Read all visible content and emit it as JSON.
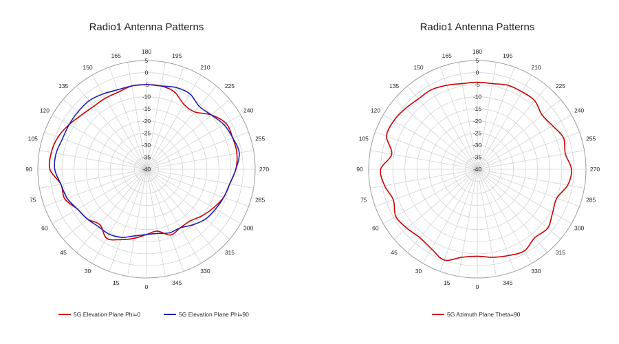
{
  "chart_data": [
    {
      "type": "polar-line",
      "title": "Radio1 Antenna Patterns",
      "r_range": [
        -40,
        5
      ],
      "r_ticks": [
        5,
        0,
        -5,
        -10,
        -15,
        -20,
        -25,
        -30,
        -35,
        -40
      ],
      "angle_ticks": [
        0,
        15,
        30,
        45,
        60,
        75,
        90,
        105,
        120,
        135,
        150,
        165,
        180,
        195,
        210,
        225,
        240,
        255,
        270,
        285,
        300,
        315,
        330,
        345
      ],
      "angle_zero": "bottom",
      "angle_direction": "clockwise",
      "grid": true,
      "legend_position": "bottom",
      "series": [
        {
          "name": "5G Elevation Plane Phi=0",
          "color": "#cc0000",
          "angles": [
            0,
            10,
            20,
            30,
            40,
            50,
            60,
            70,
            80,
            90,
            100,
            110,
            120,
            130,
            140,
            150,
            160,
            170,
            180,
            190,
            200,
            210,
            220,
            230,
            240,
            250,
            260,
            270,
            280,
            290,
            300,
            310,
            320,
            330,
            340,
            350
          ],
          "values": [
            -13,
            -11,
            -9,
            -7,
            -10,
            -8,
            -7,
            -4,
            -4,
            0,
            0,
            -1,
            -3,
            -5,
            -6,
            -6,
            -6,
            -5,
            -5,
            -5,
            -6,
            -9,
            -9,
            -5,
            -2,
            -2,
            -2,
            -3,
            -5,
            -6,
            -8,
            -10,
            -12,
            -12,
            -11,
            -14
          ]
        },
        {
          "name": "5G Elevation Plane Phi=90",
          "color": "#1f1fb3",
          "angles": [
            0,
            10,
            20,
            30,
            40,
            50,
            60,
            70,
            80,
            90,
            100,
            110,
            120,
            130,
            140,
            150,
            160,
            170,
            180,
            190,
            200,
            210,
            220,
            230,
            240,
            250,
            260,
            270,
            280,
            290,
            300,
            310,
            320,
            330,
            340,
            350
          ],
          "values": [
            -13,
            -12,
            -10,
            -9,
            -9,
            -8,
            -7,
            -5,
            -4,
            -2,
            -2,
            -3,
            -3,
            -3,
            -3,
            -4,
            -5,
            -5,
            -5,
            -5,
            -4,
            -4,
            -6,
            -5,
            -3,
            -2,
            -1,
            -3,
            -5,
            -6,
            -7,
            -8,
            -10,
            -12,
            -12,
            -13
          ]
        }
      ]
    },
    {
      "type": "polar-line",
      "title": "Radio1 Antenna Patterns",
      "r_range": [
        -40,
        5
      ],
      "r_ticks": [
        5,
        0,
        -5,
        -10,
        -15,
        -20,
        -25,
        -30,
        -35,
        -40
      ],
      "angle_ticks": [
        0,
        15,
        30,
        45,
        60,
        75,
        90,
        105,
        120,
        135,
        150,
        165,
        180,
        195,
        210,
        225,
        240,
        255,
        270,
        285,
        300,
        315,
        330,
        345
      ],
      "angle_zero": "bottom",
      "angle_direction": "clockwise",
      "grid": true,
      "legend_position": "bottom",
      "series": [
        {
          "name": "5G Azimuth Plane Theta=90",
          "color": "#cc0000",
          "angles": [
            0,
            10,
            20,
            30,
            40,
            50,
            60,
            70,
            80,
            90,
            100,
            110,
            120,
            130,
            140,
            150,
            160,
            170,
            180,
            190,
            200,
            210,
            220,
            230,
            240,
            250,
            260,
            270,
            280,
            290,
            300,
            310,
            320,
            330,
            340,
            350
          ],
          "values": [
            -4,
            -3,
            0,
            -2,
            -3,
            -2,
            -1,
            -3,
            -1,
            0,
            -4,
            0,
            0,
            -1,
            -2,
            -2,
            -3,
            -4,
            -4,
            -4,
            -3,
            -3,
            -3,
            -5,
            -4,
            -2,
            -3,
            -1,
            -2,
            -5,
            -4,
            -2,
            -3,
            -1,
            -2,
            -3
          ]
        }
      ]
    }
  ]
}
